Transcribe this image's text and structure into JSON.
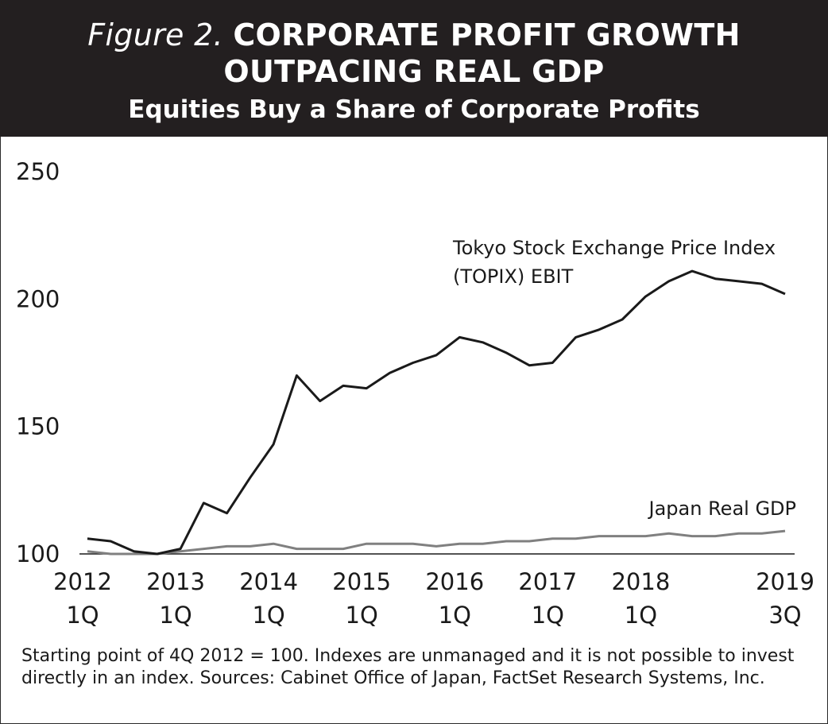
{
  "header": {
    "figure_label": "Figure 2.",
    "title_line1": "CORPORATE PROFIT GROWTH",
    "title_line2": "OUTPACING REAL GDP",
    "subtitle": "Equities Buy a Share of Corporate Profits"
  },
  "footnote": "Starting point of 4Q 2012 = 100. Indexes are unmanaged and it is not possible to invest directly in an index. Sources: Cabinet Office of Japan, FactSet Research Systems, Inc.",
  "colors": {
    "header_bg": "#231f20",
    "header_text": "#ffffff",
    "topix_line": "#1a1a1a",
    "gdp_line": "#808080",
    "axis": "#1a1a1a"
  },
  "chart_data": {
    "type": "line",
    "title": "CORPORATE PROFIT GROWTH OUTPACING REAL GDP",
    "subtitle": "Equities Buy a Share of Corporate Profits",
    "xlabel": "",
    "ylabel": "",
    "ylim": [
      100,
      250
    ],
    "yticks": [
      100,
      150,
      200,
      250
    ],
    "grid": false,
    "x": [
      "2012 1Q",
      "2012 2Q",
      "2012 3Q",
      "2012 4Q",
      "2013 1Q",
      "2013 2Q",
      "2013 3Q",
      "2013 4Q",
      "2014 1Q",
      "2014 2Q",
      "2014 3Q",
      "2014 4Q",
      "2015 1Q",
      "2015 2Q",
      "2015 3Q",
      "2015 4Q",
      "2016 1Q",
      "2016 2Q",
      "2016 3Q",
      "2016 4Q",
      "2017 1Q",
      "2017 2Q",
      "2017 3Q",
      "2017 4Q",
      "2018 1Q",
      "2018 2Q",
      "2018 3Q",
      "2018 4Q",
      "2019 1Q",
      "2019 2Q",
      "2019 3Q"
    ],
    "xtick_labels": [
      {
        "year": "2012",
        "quarter": "1Q",
        "index": 0
      },
      {
        "year": "2013",
        "quarter": "1Q",
        "index": 4
      },
      {
        "year": "2014",
        "quarter": "1Q",
        "index": 8
      },
      {
        "year": "2015",
        "quarter": "1Q",
        "index": 12
      },
      {
        "year": "2016",
        "quarter": "1Q",
        "index": 16
      },
      {
        "year": "2017",
        "quarter": "1Q",
        "index": 20
      },
      {
        "year": "2018",
        "quarter": "1Q",
        "index": 24
      },
      {
        "year": "2019",
        "quarter": "3Q",
        "index": 30
      }
    ],
    "series": [
      {
        "name": "Tokyo Stock Exchange Price Index (TOPIX) EBIT",
        "label_line1": "Tokyo Stock Exchange Price Index",
        "label_line2": "(TOPIX) EBIT",
        "color": "#1a1a1a",
        "values": [
          106,
          105,
          101,
          100,
          102,
          120,
          116,
          130,
          143,
          170,
          160,
          166,
          165,
          171,
          175,
          178,
          185,
          183,
          179,
          174,
          175,
          185,
          188,
          192,
          201,
          207,
          211,
          208,
          207,
          206,
          202
        ]
      },
      {
        "name": "Japan Real GDP",
        "label_line1": "Japan Real GDP",
        "color": "#808080",
        "values": [
          101,
          100,
          100,
          100,
          101,
          102,
          103,
          103,
          104,
          102,
          102,
          102,
          104,
          104,
          104,
          103,
          104,
          104,
          105,
          105,
          106,
          106,
          107,
          107,
          107,
          108,
          107,
          107,
          108,
          108,
          109
        ]
      }
    ]
  }
}
